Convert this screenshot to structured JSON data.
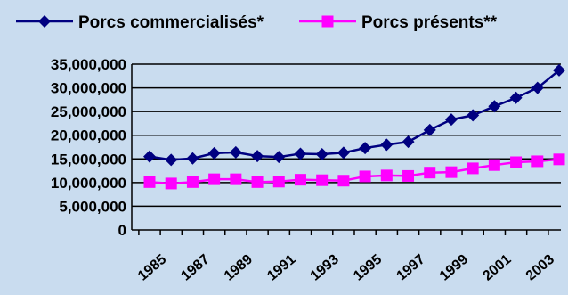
{
  "chart_data": {
    "type": "line",
    "title": "",
    "xlabel": "",
    "ylabel": "",
    "x": [
      1985,
      1986,
      1987,
      1988,
      1989,
      1990,
      1991,
      1992,
      1993,
      1994,
      1995,
      1996,
      1997,
      1998,
      1999,
      2000,
      2001,
      2002,
      2003,
      2004
    ],
    "x_tick_labels": [
      "1985",
      "1987",
      "1989",
      "1991",
      "1993",
      "1995",
      "1997",
      "1999",
      "2001",
      "2003"
    ],
    "ylim": [
      0,
      35000000
    ],
    "y_tick_labels": [
      "35,000,000",
      "30,000,000",
      "25,000,000",
      "20,000,000",
      "15,000,000",
      "10,000,000",
      "5,000,000",
      "0"
    ],
    "grid": true,
    "legend_position": "top",
    "series": [
      {
        "name": "Porcs commercialisés*",
        "color": "#000080",
        "marker": "diamond",
        "values": [
          15500000,
          14800000,
          15100000,
          16200000,
          16400000,
          15600000,
          15400000,
          16100000,
          16000000,
          16300000,
          17300000,
          18000000,
          18600000,
          21100000,
          23300000,
          24200000,
          26100000,
          27900000,
          30000000,
          33700000
        ]
      },
      {
        "name": "Porcs présents**",
        "color": "#ff00ff",
        "marker": "square",
        "values": [
          10100000,
          9800000,
          10100000,
          10700000,
          10700000,
          10100000,
          10200000,
          10600000,
          10500000,
          10400000,
          11300000,
          11500000,
          11400000,
          12100000,
          12200000,
          13000000,
          13700000,
          14300000,
          14500000,
          14900000
        ]
      }
    ]
  }
}
